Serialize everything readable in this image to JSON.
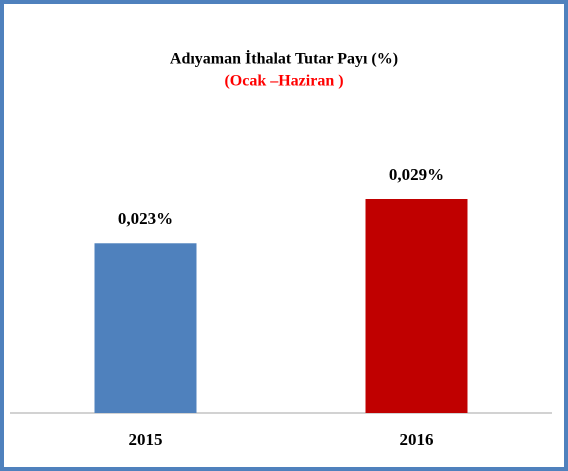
{
  "chart_data": {
    "type": "bar",
    "title": "Adıyaman İthalat Tutar Payı (%)",
    "subtitle": "(Ocak –Haziran )",
    "categories": [
      "2015",
      "2016"
    ],
    "values": [
      0.023,
      0.029
    ],
    "value_labels": [
      "0,023%",
      "0,029%"
    ],
    "colors": [
      "#4f81bd",
      "#c00000"
    ]
  }
}
